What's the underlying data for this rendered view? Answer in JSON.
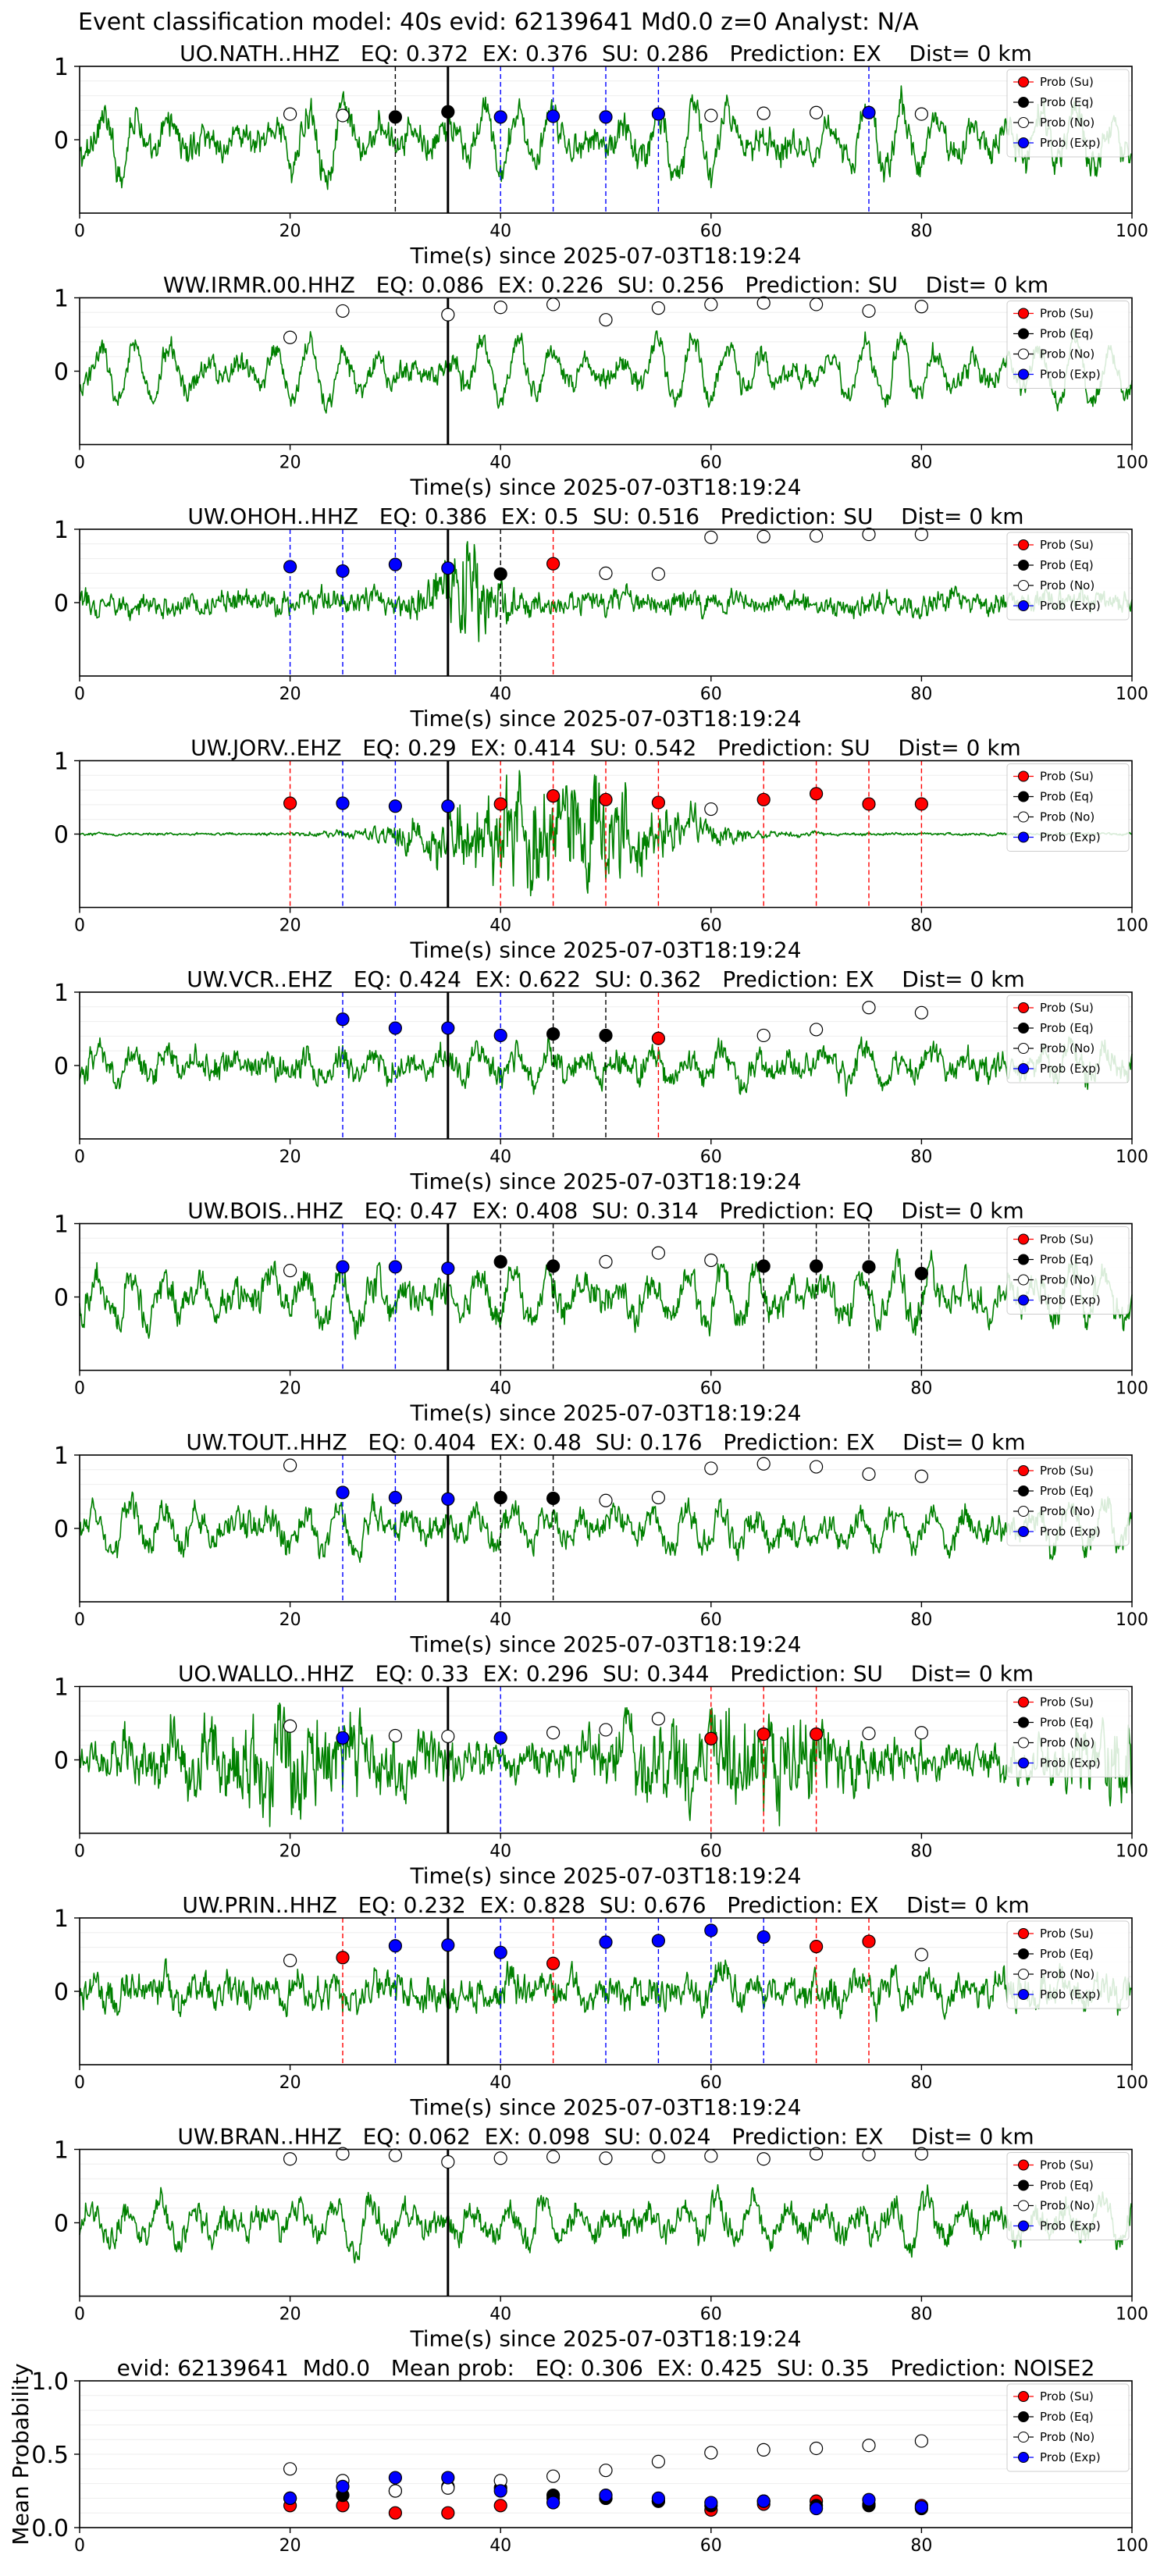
{
  "figure": {
    "suptitle": "Event classification model: 40s evid: 62139641 Md0.0 z=0 Analyst: N/A"
  },
  "legend_labels": [
    "Prob (Su)",
    "Prob (Eq)",
    "Prob (No)",
    "Prob (Exp)"
  ],
  "colors": {
    "waveform": "#008000",
    "su": "#ff0000",
    "eq": "#000000",
    "no": "#ffffff",
    "exp": "#0000ff",
    "origin_line": "#000000"
  },
  "chart_data": [
    {
      "type": "line",
      "title": "UO.NATH..HHZ   EQ: 0.372  EX: 0.376  SU: 0.286   Prediction: EX    Dist= 0 km",
      "xlabel": "Time(s) since 2025-07-03T18:19:24",
      "xlim": [
        0,
        100
      ],
      "ylim": [
        -1,
        1
      ],
      "xticks": [
        0,
        20,
        40,
        60,
        80,
        100
      ],
      "yticks": [
        0,
        1
      ],
      "origin_time": 35,
      "waveform": {
        "style": "continuous",
        "amplitude": 0.42,
        "noise": 0.35
      },
      "prob_points": [
        {
          "x": 20,
          "y": 0.35,
          "class": "No"
        },
        {
          "x": 25,
          "y": 0.33,
          "class": "No"
        },
        {
          "x": 30,
          "y": 0.31,
          "class": "Eq"
        },
        {
          "x": 35,
          "y": 0.38,
          "class": "Eq"
        },
        {
          "x": 40,
          "y": 0.31,
          "class": "Exp"
        },
        {
          "x": 45,
          "y": 0.32,
          "class": "Exp"
        },
        {
          "x": 50,
          "y": 0.31,
          "class": "Exp"
        },
        {
          "x": 55,
          "y": 0.35,
          "class": "Exp"
        },
        {
          "x": 60,
          "y": 0.33,
          "class": "No"
        },
        {
          "x": 65,
          "y": 0.36,
          "class": "No"
        },
        {
          "x": 70,
          "y": 0.37,
          "class": "No"
        },
        {
          "x": 75,
          "y": 0.37,
          "class": "Exp"
        },
        {
          "x": 80,
          "y": 0.35,
          "class": "No"
        }
      ]
    },
    {
      "type": "line",
      "title": "WW.IRMR.00.HHZ   EQ: 0.086  EX: 0.226  SU: 0.256   Prediction: SU    Dist= 0 km",
      "xlabel": "Time(s) since 2025-07-03T18:19:24",
      "xlim": [
        0,
        100
      ],
      "ylim": [
        -1,
        1
      ],
      "xticks": [
        0,
        20,
        40,
        60,
        80,
        100
      ],
      "yticks": [
        0,
        1
      ],
      "origin_time": 35,
      "waveform": {
        "style": "continuous",
        "amplitude": 0.42,
        "noise": 0.25
      },
      "prob_points": [
        {
          "x": 20,
          "y": 0.46,
          "class": "No"
        },
        {
          "x": 25,
          "y": 0.82,
          "class": "No"
        },
        {
          "x": 35,
          "y": 0.77,
          "class": "No"
        },
        {
          "x": 40,
          "y": 0.87,
          "class": "No"
        },
        {
          "x": 45,
          "y": 0.91,
          "class": "No"
        },
        {
          "x": 50,
          "y": 0.7,
          "class": "No"
        },
        {
          "x": 55,
          "y": 0.86,
          "class": "No"
        },
        {
          "x": 60,
          "y": 0.91,
          "class": "No"
        },
        {
          "x": 65,
          "y": 0.93,
          "class": "No"
        },
        {
          "x": 70,
          "y": 0.91,
          "class": "No"
        },
        {
          "x": 75,
          "y": 0.82,
          "class": "No"
        },
        {
          "x": 80,
          "y": 0.88,
          "class": "No"
        }
      ]
    },
    {
      "type": "line",
      "title": "UW.OHOH..HHZ   EQ: 0.386  EX: 0.5  SU: 0.516   Prediction: SU    Dist= 0 km",
      "xlabel": "Time(s) since 2025-07-03T18:19:24",
      "xlim": [
        0,
        100
      ],
      "ylim": [
        -1,
        1
      ],
      "xticks": [
        0,
        20,
        40,
        60,
        80,
        100
      ],
      "yticks": [
        0,
        1
      ],
      "origin_time": 35,
      "waveform": {
        "style": "burst",
        "amplitude": 0.18,
        "noise": 0.7,
        "burst_center": 37,
        "burst_width": 3
      },
      "prob_points": [
        {
          "x": 20,
          "y": 0.49,
          "class": "Exp"
        },
        {
          "x": 25,
          "y": 0.43,
          "class": "Exp"
        },
        {
          "x": 30,
          "y": 0.52,
          "class": "Exp"
        },
        {
          "x": 35,
          "y": 0.47,
          "class": "Exp"
        },
        {
          "x": 40,
          "y": 0.39,
          "class": "Eq"
        },
        {
          "x": 45,
          "y": 0.53,
          "class": "Su"
        },
        {
          "x": 50,
          "y": 0.4,
          "class": "No"
        },
        {
          "x": 55,
          "y": 0.39,
          "class": "No"
        },
        {
          "x": 60,
          "y": 0.89,
          "class": "No"
        },
        {
          "x": 65,
          "y": 0.9,
          "class": "No"
        },
        {
          "x": 70,
          "y": 0.91,
          "class": "No"
        },
        {
          "x": 75,
          "y": 0.93,
          "class": "No"
        },
        {
          "x": 80,
          "y": 0.93,
          "class": "No"
        }
      ]
    },
    {
      "type": "line",
      "title": "UW.JORV..EHZ   EQ: 0.29  EX: 0.414  SU: 0.542   Prediction: SU    Dist= 0 km",
      "xlabel": "Time(s) since 2025-07-03T18:19:24",
      "xlim": [
        0,
        100
      ],
      "ylim": [
        -1,
        1
      ],
      "xticks": [
        0,
        20,
        40,
        60,
        80,
        100
      ],
      "yticks": [
        0,
        1
      ],
      "origin_time": 35,
      "waveform": {
        "style": "burst",
        "amplitude": 0.02,
        "noise": 0.9,
        "burst_center": 45,
        "burst_width": 12
      },
      "prob_points": [
        {
          "x": 20,
          "y": 0.42,
          "class": "Su"
        },
        {
          "x": 25,
          "y": 0.42,
          "class": "Exp"
        },
        {
          "x": 30,
          "y": 0.38,
          "class": "Exp"
        },
        {
          "x": 35,
          "y": 0.38,
          "class": "Exp"
        },
        {
          "x": 40,
          "y": 0.41,
          "class": "Su"
        },
        {
          "x": 45,
          "y": 0.52,
          "class": "Su"
        },
        {
          "x": 50,
          "y": 0.47,
          "class": "Su"
        },
        {
          "x": 55,
          "y": 0.43,
          "class": "Su"
        },
        {
          "x": 60,
          "y": 0.34,
          "class": "No"
        },
        {
          "x": 65,
          "y": 0.47,
          "class": "Su"
        },
        {
          "x": 70,
          "y": 0.55,
          "class": "Su"
        },
        {
          "x": 75,
          "y": 0.41,
          "class": "Su"
        },
        {
          "x": 80,
          "y": 0.41,
          "class": "Su"
        }
      ]
    },
    {
      "type": "line",
      "title": "UW.VCR..EHZ   EQ: 0.424  EX: 0.622  SU: 0.362   Prediction: EX    Dist= 0 km",
      "xlabel": "Time(s) since 2025-07-03T18:19:24",
      "xlim": [
        0,
        100
      ],
      "ylim": [
        -1,
        1
      ],
      "xticks": [
        0,
        20,
        40,
        60,
        80,
        100
      ],
      "yticks": [
        0,
        1
      ],
      "origin_time": 35,
      "waveform": {
        "style": "continuous",
        "amplitude": 0.2,
        "noise": 0.3
      },
      "prob_points": [
        {
          "x": 25,
          "y": 0.63,
          "class": "Exp"
        },
        {
          "x": 30,
          "y": 0.51,
          "class": "Exp"
        },
        {
          "x": 35,
          "y": 0.51,
          "class": "Exp"
        },
        {
          "x": 40,
          "y": 0.41,
          "class": "Exp"
        },
        {
          "x": 45,
          "y": 0.43,
          "class": "Eq"
        },
        {
          "x": 50,
          "y": 0.41,
          "class": "Eq"
        },
        {
          "x": 55,
          "y": 0.37,
          "class": "Su"
        },
        {
          "x": 65,
          "y": 0.41,
          "class": "No"
        },
        {
          "x": 70,
          "y": 0.49,
          "class": "No"
        },
        {
          "x": 75,
          "y": 0.79,
          "class": "No"
        },
        {
          "x": 80,
          "y": 0.72,
          "class": "No"
        }
      ]
    },
    {
      "type": "line",
      "title": "UW.BOIS..HHZ   EQ: 0.47  EX: 0.408  SU: 0.314   Prediction: EQ    Dist= 0 km",
      "xlabel": "Time(s) since 2025-07-03T18:19:24",
      "xlim": [
        0,
        100
      ],
      "ylim": [
        -1,
        1
      ],
      "xticks": [
        0,
        20,
        40,
        60,
        80,
        100
      ],
      "yticks": [
        0,
        1
      ],
      "origin_time": 35,
      "waveform": {
        "style": "continuous",
        "amplitude": 0.38,
        "noise": 0.35
      },
      "prob_points": [
        {
          "x": 20,
          "y": 0.36,
          "class": "No"
        },
        {
          "x": 25,
          "y": 0.41,
          "class": "Exp"
        },
        {
          "x": 30,
          "y": 0.41,
          "class": "Exp"
        },
        {
          "x": 35,
          "y": 0.39,
          "class": "Exp"
        },
        {
          "x": 40,
          "y": 0.48,
          "class": "Eq"
        },
        {
          "x": 45,
          "y": 0.42,
          "class": "Eq"
        },
        {
          "x": 50,
          "y": 0.48,
          "class": "No"
        },
        {
          "x": 55,
          "y": 0.6,
          "class": "No"
        },
        {
          "x": 60,
          "y": 0.5,
          "class": "No"
        },
        {
          "x": 65,
          "y": 0.42,
          "class": "Eq"
        },
        {
          "x": 70,
          "y": 0.42,
          "class": "Eq"
        },
        {
          "x": 75,
          "y": 0.41,
          "class": "Eq"
        },
        {
          "x": 80,
          "y": 0.32,
          "class": "Eq"
        }
      ]
    },
    {
      "type": "line",
      "title": "UW.TOUT..HHZ   EQ: 0.404  EX: 0.48  SU: 0.176   Prediction: EX    Dist= 0 km",
      "xlabel": "Time(s) since 2025-07-03T18:19:24",
      "xlim": [
        0,
        100
      ],
      "ylim": [
        -1,
        1
      ],
      "xticks": [
        0,
        20,
        40,
        60,
        80,
        100
      ],
      "yticks": [
        0,
        1
      ],
      "origin_time": 35,
      "waveform": {
        "style": "continuous",
        "amplitude": 0.3,
        "noise": 0.3
      },
      "prob_points": [
        {
          "x": 20,
          "y": 0.86,
          "class": "No"
        },
        {
          "x": 25,
          "y": 0.49,
          "class": "Exp"
        },
        {
          "x": 30,
          "y": 0.42,
          "class": "Exp"
        },
        {
          "x": 35,
          "y": 0.4,
          "class": "Exp"
        },
        {
          "x": 40,
          "y": 0.42,
          "class": "Eq"
        },
        {
          "x": 45,
          "y": 0.41,
          "class": "Eq"
        },
        {
          "x": 50,
          "y": 0.38,
          "class": "No"
        },
        {
          "x": 55,
          "y": 0.42,
          "class": "No"
        },
        {
          "x": 60,
          "y": 0.82,
          "class": "No"
        },
        {
          "x": 65,
          "y": 0.88,
          "class": "No"
        },
        {
          "x": 70,
          "y": 0.84,
          "class": "No"
        },
        {
          "x": 75,
          "y": 0.74,
          "class": "No"
        },
        {
          "x": 80,
          "y": 0.71,
          "class": "No"
        }
      ]
    },
    {
      "type": "line",
      "title": "UO.WALLO..HHZ   EQ: 0.33  EX: 0.296  SU: 0.344   Prediction: SU    Dist= 0 km",
      "xlabel": "Time(s) since 2025-07-03T18:19:24",
      "xlim": [
        0,
        100
      ],
      "ylim": [
        -1,
        1
      ],
      "xticks": [
        0,
        20,
        40,
        60,
        80,
        100
      ],
      "yticks": [
        0,
        1
      ],
      "origin_time": 35,
      "waveform": {
        "style": "dense",
        "amplitude": 0.15,
        "noise": 0.6
      },
      "prob_points": [
        {
          "x": 20,
          "y": 0.46,
          "class": "No"
        },
        {
          "x": 25,
          "y": 0.3,
          "class": "Exp"
        },
        {
          "x": 30,
          "y": 0.33,
          "class": "No"
        },
        {
          "x": 35,
          "y": 0.32,
          "class": "No"
        },
        {
          "x": 40,
          "y": 0.3,
          "class": "Exp"
        },
        {
          "x": 45,
          "y": 0.37,
          "class": "No"
        },
        {
          "x": 50,
          "y": 0.41,
          "class": "No"
        },
        {
          "x": 55,
          "y": 0.56,
          "class": "No"
        },
        {
          "x": 60,
          "y": 0.29,
          "class": "Su"
        },
        {
          "x": 65,
          "y": 0.35,
          "class": "Su"
        },
        {
          "x": 70,
          "y": 0.35,
          "class": "Su"
        },
        {
          "x": 75,
          "y": 0.36,
          "class": "No"
        },
        {
          "x": 80,
          "y": 0.37,
          "class": "No"
        }
      ]
    },
    {
      "type": "line",
      "title": "UW.PRIN..HHZ   EQ: 0.232  EX: 0.828  SU: 0.676   Prediction: EX    Dist= 0 km",
      "xlabel": "Time(s) since 2025-07-03T18:19:24",
      "xlim": [
        0,
        100
      ],
      "ylim": [
        -1,
        1
      ],
      "xticks": [
        0,
        20,
        40,
        60,
        80,
        100
      ],
      "yticks": [
        0,
        1
      ],
      "origin_time": 35,
      "waveform": {
        "style": "continuous",
        "amplitude": 0.15,
        "noise": 0.35
      },
      "prob_points": [
        {
          "x": 20,
          "y": 0.42,
          "class": "No"
        },
        {
          "x": 25,
          "y": 0.46,
          "class": "Su"
        },
        {
          "x": 30,
          "y": 0.62,
          "class": "Exp"
        },
        {
          "x": 35,
          "y": 0.63,
          "class": "Exp"
        },
        {
          "x": 40,
          "y": 0.53,
          "class": "Exp"
        },
        {
          "x": 45,
          "y": 0.38,
          "class": "Su"
        },
        {
          "x": 50,
          "y": 0.67,
          "class": "Exp"
        },
        {
          "x": 55,
          "y": 0.69,
          "class": "Exp"
        },
        {
          "x": 60,
          "y": 0.83,
          "class": "Exp"
        },
        {
          "x": 65,
          "y": 0.74,
          "class": "Exp"
        },
        {
          "x": 70,
          "y": 0.61,
          "class": "Su"
        },
        {
          "x": 75,
          "y": 0.68,
          "class": "Su"
        },
        {
          "x": 80,
          "y": 0.5,
          "class": "No"
        }
      ]
    },
    {
      "type": "line",
      "title": "UW.BRAN..HHZ   EQ: 0.062  EX: 0.098  SU: 0.024   Prediction: EX    Dist= 0 km",
      "xlabel": "Time(s) since 2025-07-03T18:19:24",
      "xlim": [
        0,
        100
      ],
      "ylim": [
        -1,
        1
      ],
      "xticks": [
        0,
        20,
        40,
        60,
        80,
        100
      ],
      "yticks": [
        0,
        1
      ],
      "origin_time": 35,
      "waveform": {
        "style": "continuous",
        "amplitude": 0.3,
        "noise": 0.3
      },
      "prob_points": [
        {
          "x": 20,
          "y": 0.87,
          "class": "No"
        },
        {
          "x": 25,
          "y": 0.94,
          "class": "No"
        },
        {
          "x": 30,
          "y": 0.92,
          "class": "No"
        },
        {
          "x": 35,
          "y": 0.83,
          "class": "No"
        },
        {
          "x": 40,
          "y": 0.88,
          "class": "No"
        },
        {
          "x": 45,
          "y": 0.9,
          "class": "No"
        },
        {
          "x": 50,
          "y": 0.88,
          "class": "No"
        },
        {
          "x": 55,
          "y": 0.9,
          "class": "No"
        },
        {
          "x": 60,
          "y": 0.91,
          "class": "No"
        },
        {
          "x": 65,
          "y": 0.87,
          "class": "No"
        },
        {
          "x": 70,
          "y": 0.94,
          "class": "No"
        },
        {
          "x": 75,
          "y": 0.93,
          "class": "No"
        },
        {
          "x": 80,
          "y": 0.94,
          "class": "No"
        }
      ]
    },
    {
      "type": "scatter",
      "title": "evid: 62139641  Md0.0   Mean prob:   EQ: 0.306  EX: 0.425  SU: 0.35   Prediction: NOISE2",
      "ylabel": "Mean Probability",
      "xlim": [
        0,
        100
      ],
      "ylim": [
        0,
        1
      ],
      "xticks": [
        0,
        20,
        40,
        60,
        80,
        100
      ],
      "yticks": [
        0.0,
        0.5,
        1.0
      ],
      "ytick_labels": [
        "0.0",
        "0.5",
        "1.0"
      ],
      "x": [
        20,
        25,
        30,
        35,
        40,
        45,
        50,
        55,
        60,
        65,
        70,
        75,
        80
      ],
      "series": [
        {
          "name": "Prob (Su)",
          "class": "Su",
          "values": [
            0.15,
            0.15,
            0.1,
            0.1,
            0.15,
            0.2,
            0.2,
            0.18,
            0.12,
            0.16,
            0.18,
            0.16,
            0.15
          ]
        },
        {
          "name": "Prob (Eq)",
          "class": "Eq",
          "values": [
            0.2,
            0.22,
            0.25,
            0.28,
            0.27,
            0.22,
            0.2,
            0.18,
            0.15,
            0.18,
            0.15,
            0.15,
            0.13
          ]
        },
        {
          "name": "Prob (No)",
          "class": "No",
          "values": [
            0.4,
            0.32,
            0.25,
            0.27,
            0.32,
            0.35,
            0.39,
            0.45,
            0.51,
            0.53,
            0.54,
            0.56,
            0.59
          ]
        },
        {
          "name": "Prob (Exp)",
          "class": "Exp",
          "values": [
            0.2,
            0.28,
            0.34,
            0.34,
            0.25,
            0.17,
            0.22,
            0.2,
            0.17,
            0.18,
            0.13,
            0.19,
            0.14
          ]
        }
      ]
    }
  ]
}
